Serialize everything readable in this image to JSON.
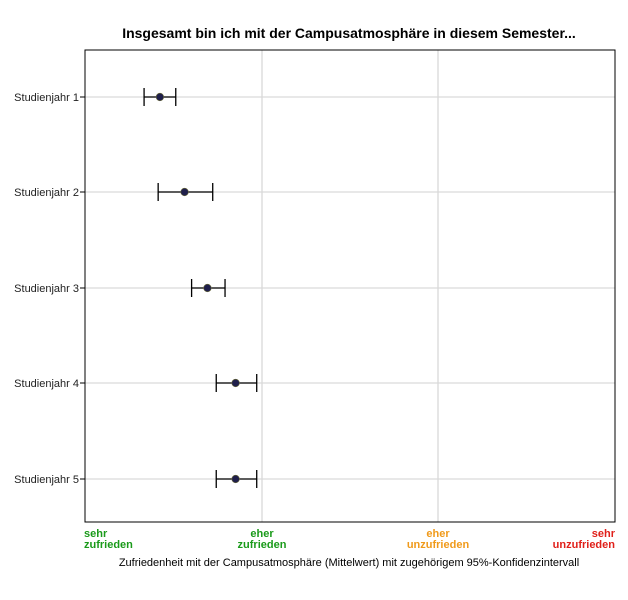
{
  "chart_data": {
    "type": "errorbar",
    "title": "Insgesamt bin ich mit der Campusatmosphäre in diesem Semester...",
    "xlabel": "Zufriedenheit mit der Campusatmosphäre (Mittelwert) mit zugehörigem 95%-Konfidenzintervall",
    "xlim": [
      1,
      4
    ],
    "x_ticks": [
      {
        "value": 1,
        "lines": [
          "sehr",
          "zufrieden"
        ],
        "color": "#1a9a1a",
        "anchor": "start"
      },
      {
        "value": 2,
        "lines": [
          "eher",
          "zufrieden"
        ],
        "color": "#1a9a1a",
        "anchor": "middle"
      },
      {
        "value": 3,
        "lines": [
          "eher",
          "unzufrieden"
        ],
        "color": "#f09a1a",
        "anchor": "middle"
      },
      {
        "value": 4,
        "lines": [
          "sehr",
          "unzufrieden"
        ],
        "color": "#e0201a",
        "anchor": "end"
      }
    ],
    "categories": [
      "Studienjahr 1",
      "Studienjahr 2",
      "Studienjahr 3",
      "Studienjahr 4",
      "Studienjahr 5"
    ],
    "mean": [
      1.42,
      1.56,
      1.69,
      1.85,
      1.85
    ],
    "ci_low": [
      1.33,
      1.41,
      1.6,
      1.74,
      1.74
    ],
    "ci_high": [
      1.51,
      1.72,
      1.79,
      1.97,
      1.97
    ],
    "grid": true,
    "colors": {
      "point": "#1f1f4a",
      "errorbar": "#000000",
      "grid": "#d9d9d9"
    }
  }
}
